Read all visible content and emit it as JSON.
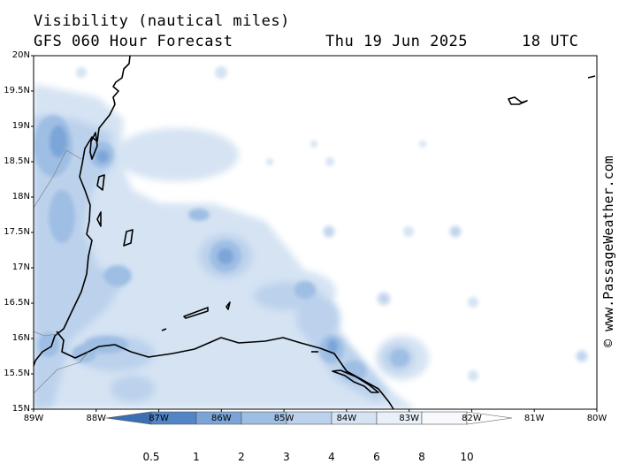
{
  "title": {
    "line1": "Visibility (nautical miles)",
    "line2": "GFS 060 Hour Forecast",
    "date": "Thu 19 Jun 2025",
    "time": "18 UTC"
  },
  "credit": "© www.PassageWeather.com",
  "map": {
    "lat_labels": [
      "20N",
      "19.5N",
      "19N",
      "18.5N",
      "18N",
      "17.5N",
      "17N",
      "16.5N",
      "16N",
      "15.5N",
      "15N"
    ],
    "lon_labels": [
      "89W",
      "88W",
      "87W",
      "86W",
      "85W",
      "84W",
      "83W",
      "82W",
      "81W",
      "80W"
    ],
    "colors": {
      "vis_lt_0.5": "#3a6fb5",
      "vis_0.5_1": "#5185c5",
      "vis_1_2": "#7ba5d8",
      "vis_2_3": "#9fbee4",
      "vis_3_4": "#bcd2ec",
      "vis_4_6": "#d5e3f3",
      "vis_6_8": "#e9f0f9",
      "vis_8_10": "#f7f9fd",
      "coastline": "#000000"
    }
  },
  "colorbar": {
    "labels": [
      "0.5",
      "1",
      "2",
      "3",
      "4",
      "6",
      "8",
      "10"
    ]
  }
}
